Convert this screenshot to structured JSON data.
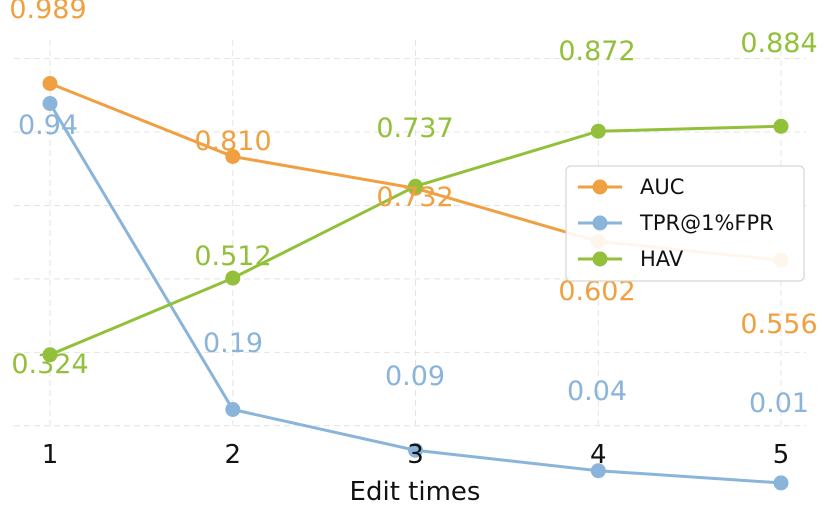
{
  "chart_data": {
    "type": "line",
    "title": "",
    "xlabel": "Edit times",
    "ylabel": "",
    "x": [
      1,
      2,
      3,
      4,
      5
    ],
    "xticks": [
      "1",
      "2",
      "3",
      "4",
      "5"
    ],
    "ylim": [
      0.0,
      1.02
    ],
    "grid": true,
    "legend_position": "center-right",
    "series": [
      {
        "name": "AUC",
        "color": "#F0A040",
        "values": [
          0.989,
          0.81,
          0.732,
          0.602,
          0.556
        ],
        "labels": [
          "0.989",
          "0.810",
          "0.732",
          "0.602",
          "0.556"
        ]
      },
      {
        "name": "TPR@1%FPR",
        "color": "#8AB4DA",
        "values": [
          0.94,
          0.19,
          0.09,
          0.04,
          0.01
        ],
        "labels": [
          "0.94",
          "0.19",
          "0.09",
          "0.04",
          "0.01"
        ]
      },
      {
        "name": "HAV",
        "color": "#92C03A",
        "values": [
          0.324,
          0.512,
          0.737,
          0.872,
          0.884
        ],
        "labels": [
          "0.324",
          "0.512",
          "0.737",
          "0.872",
          "0.884"
        ]
      }
    ]
  }
}
